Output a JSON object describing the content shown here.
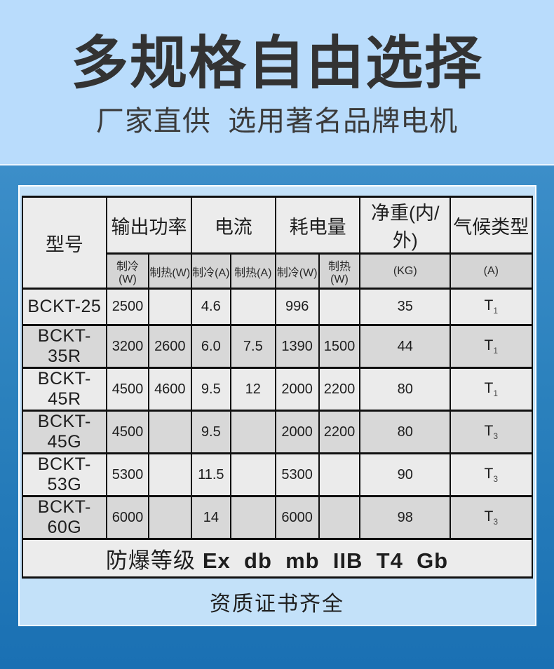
{
  "hero": {
    "title": "多规格自由选择",
    "subtitle": "厂家直供  选用著名品牌电机"
  },
  "table": {
    "header": {
      "model_label": "型号",
      "groups": [
        {
          "label": "输出功率",
          "subs": [
            "制冷(W)",
            "制热(W)"
          ]
        },
        {
          "label": "电流",
          "subs": [
            "制冷(A)",
            "制热(A)"
          ]
        },
        {
          "label": "耗电量",
          "subs": [
            "制冷(W)",
            "制热(W)"
          ]
        },
        {
          "label": "净重(内/外)",
          "subs": [
            "(KG)"
          ]
        },
        {
          "label": "气候类型",
          "subs": [
            "(A)"
          ]
        }
      ]
    },
    "rows": [
      {
        "model": "BCKT-25",
        "values": [
          "2500",
          "",
          "4.6",
          "",
          "996",
          "",
          "35"
        ],
        "climate_base": "T",
        "climate_sub": "1"
      },
      {
        "model": "BCKT-35R",
        "values": [
          "3200",
          "2600",
          "6.0",
          "7.5",
          "1390",
          "1500",
          "44"
        ],
        "climate_base": "T",
        "climate_sub": "1"
      },
      {
        "model": "BCKT-45R",
        "values": [
          "4500",
          "4600",
          "9.5",
          "12",
          "2000",
          "2200",
          "80"
        ],
        "climate_base": "T",
        "climate_sub": "1"
      },
      {
        "model": "BCKT-45G",
        "values": [
          "4500",
          "",
          "9.5",
          "",
          "2000",
          "2200",
          "80"
        ],
        "climate_base": "T",
        "climate_sub": "3"
      },
      {
        "model": "BCKT-53G",
        "values": [
          "5300",
          "",
          "11.5",
          "",
          "5300",
          "",
          "90"
        ],
        "climate_base": "T",
        "climate_sub": "3"
      },
      {
        "model": "BCKT-60G",
        "values": [
          "6000",
          "",
          "14",
          "",
          "6000",
          "",
          "98"
        ],
        "climate_base": "T",
        "climate_sub": "3"
      }
    ],
    "explosion_label": "防爆等级",
    "explosion_code": "Ex  db  mb  IIB  T4  Gb"
  },
  "footer": {
    "cert_text": "资质证书齐全"
  },
  "colors": {
    "hero_bg": "#b9dcfc",
    "body_gradient_top": "#3c8ec9",
    "body_gradient_bottom": "#1a70b3",
    "card_bg": "#c3e1f9",
    "card_border": "#fbfdff",
    "header_bg": "#ececec",
    "subheader_bg": "#d5d5d5",
    "row_light": "#ebebeb",
    "row_dark": "#d8d8d8",
    "table_border": "#101010",
    "title_text": "#333333"
  }
}
